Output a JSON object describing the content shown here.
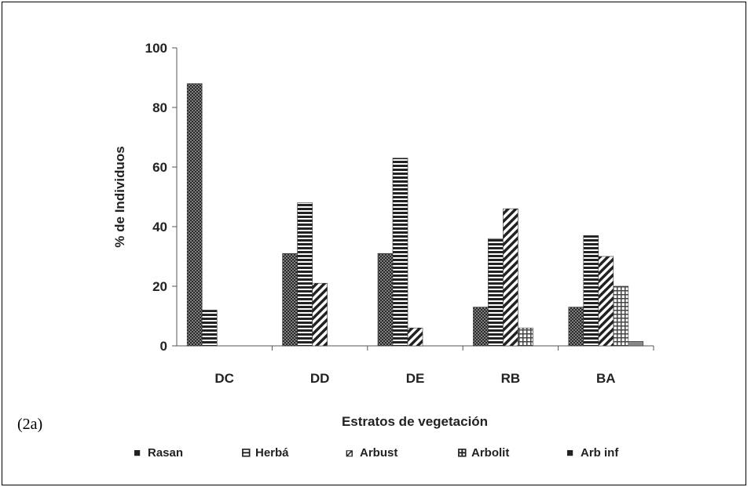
{
  "figure_label": "(2a)",
  "chart_data": {
    "type": "bar",
    "title": "",
    "xlabel": "Estratos de vegetación",
    "ylabel": "% de Individuos",
    "ylim": [
      0,
      100
    ],
    "yticks": [
      0,
      20,
      40,
      60,
      80,
      100
    ],
    "categories": [
      "DC",
      "DD",
      "DE",
      "RB",
      "BA"
    ],
    "series": [
      {
        "name": "Rasan",
        "pattern": "dots",
        "legend_symbol": "■",
        "values": [
          88,
          31,
          31,
          13,
          13
        ]
      },
      {
        "name": "Herbá",
        "pattern": "hlines",
        "legend_symbol": "⊟",
        "values": [
          12,
          48,
          63,
          36,
          37
        ]
      },
      {
        "name": "Arbust",
        "pattern": "diag",
        "legend_symbol": "⧄",
        "values": [
          0,
          21,
          6,
          46,
          30
        ]
      },
      {
        "name": "Arbolit",
        "pattern": "grid",
        "legend_symbol": "⊞",
        "values": [
          0,
          0,
          0,
          6,
          20
        ]
      },
      {
        "name": "Arb inf",
        "pattern": "solid",
        "legend_symbol": "■",
        "values": [
          0,
          0,
          0,
          0,
          1.5
        ]
      }
    ],
    "grid": false,
    "legend_position": "bottom"
  }
}
